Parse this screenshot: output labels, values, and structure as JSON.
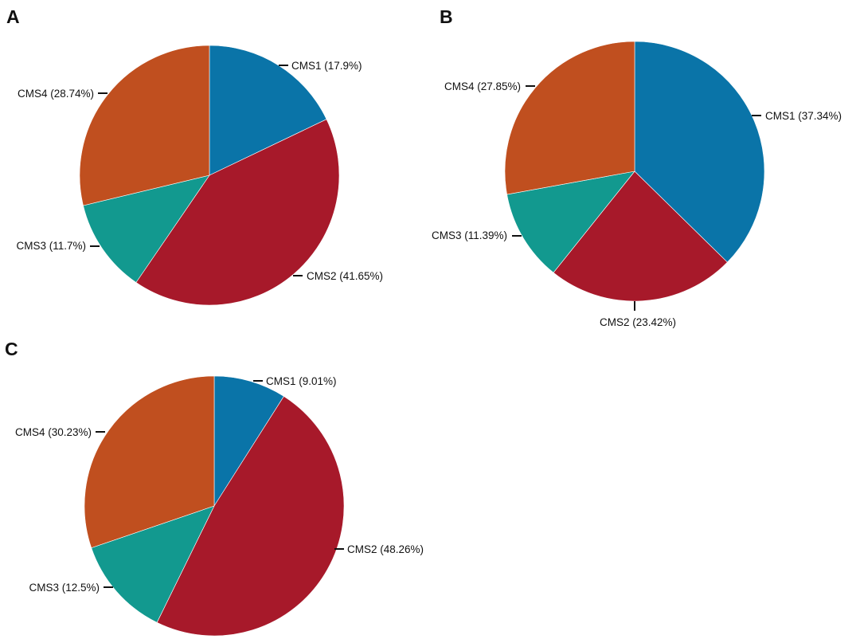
{
  "colors": {
    "CMS1": "#0a74a8",
    "CMS2": "#a7192a",
    "CMS3": "#12998f",
    "CMS4": "#c04f1f"
  },
  "chart_data": [
    {
      "type": "pie",
      "panel": "A",
      "slices": [
        {
          "name": "CMS1",
          "value": 17.9,
          "label": "CMS1 (17.9%)"
        },
        {
          "name": "CMS2",
          "value": 41.65,
          "label": "CMS2 (41.65%)"
        },
        {
          "name": "CMS3",
          "value": 11.7,
          "label": "CMS3 (11.7%)"
        },
        {
          "name": "CMS4",
          "value": 28.74,
          "label": "CMS4 (28.74%)"
        }
      ]
    },
    {
      "type": "pie",
      "panel": "B",
      "slices": [
        {
          "name": "CMS1",
          "value": 37.34,
          "label": "CMS1 (37.34%)"
        },
        {
          "name": "CMS2",
          "value": 23.42,
          "label": "CMS2 (23.42%)"
        },
        {
          "name": "CMS3",
          "value": 11.39,
          "label": "CMS3 (11.39%)"
        },
        {
          "name": "CMS4",
          "value": 27.85,
          "label": "CMS4 (27.85%)"
        }
      ]
    },
    {
      "type": "pie",
      "panel": "C",
      "slices": [
        {
          "name": "CMS1",
          "value": 9.01,
          "label": "CMS1 (9.01%)"
        },
        {
          "name": "CMS2",
          "value": 48.26,
          "label": "CMS2 (48.26%)"
        },
        {
          "name": "CMS3",
          "value": 12.5,
          "label": "CMS3 (12.5%)"
        },
        {
          "name": "CMS4",
          "value": 30.23,
          "label": "CMS4 (30.23%)"
        }
      ]
    }
  ]
}
